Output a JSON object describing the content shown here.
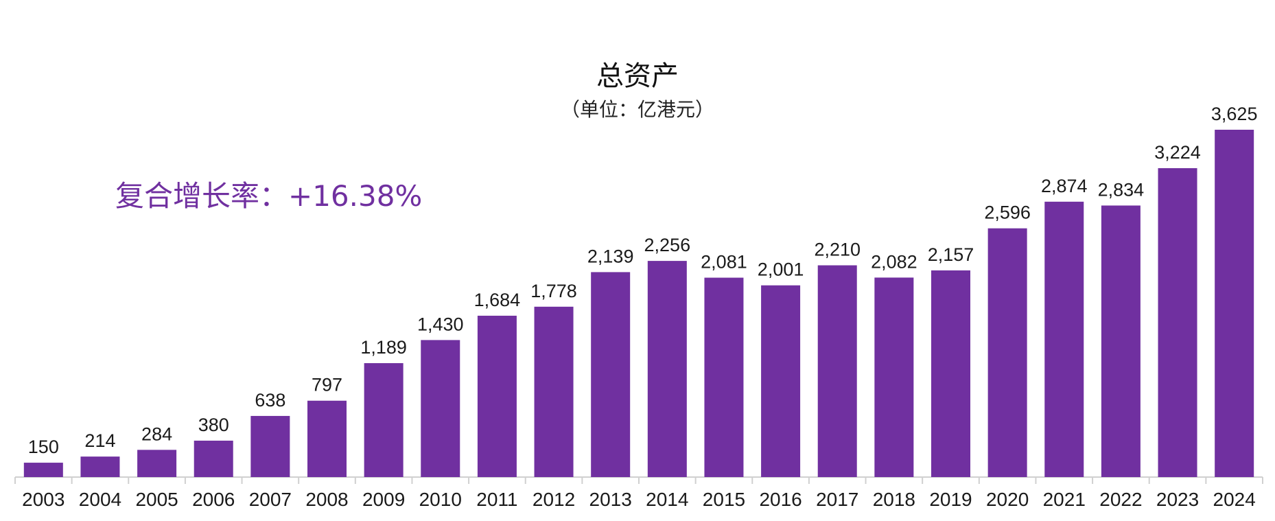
{
  "chart_data": {
    "type": "bar",
    "title": "总资产",
    "subtitle": "（单位：亿港元）",
    "annotation": "复合增长率：+16.38%",
    "categories": [
      "2003",
      "2004",
      "2005",
      "2006",
      "2007",
      "2008",
      "2009",
      "2010",
      "2011",
      "2012",
      "2013",
      "2014",
      "2015",
      "2016",
      "2017",
      "2018",
      "2019",
      "2020",
      "2021",
      "2022",
      "2023",
      "2024"
    ],
    "values": [
      150,
      214,
      284,
      380,
      638,
      797,
      1189,
      1430,
      1684,
      1778,
      2139,
      2256,
      2081,
      2001,
      2210,
      2082,
      2157,
      2596,
      2874,
      2834,
      3224,
      3625
    ],
    "value_labels": [
      "150",
      "214",
      "284",
      "380",
      "638",
      "797",
      "1,189",
      "1,430",
      "1,684",
      "1,778",
      "2,139",
      "2,256",
      "2,081",
      "2,001",
      "2,210",
      "2,082",
      "2,157",
      "2,596",
      "2,874",
      "2,834",
      "3,224",
      "3,625"
    ],
    "ylim": [
      0,
      3625
    ],
    "bar_color": "#7030a0",
    "annotation_color": "#7030a0",
    "grid": false,
    "legend": "none"
  }
}
